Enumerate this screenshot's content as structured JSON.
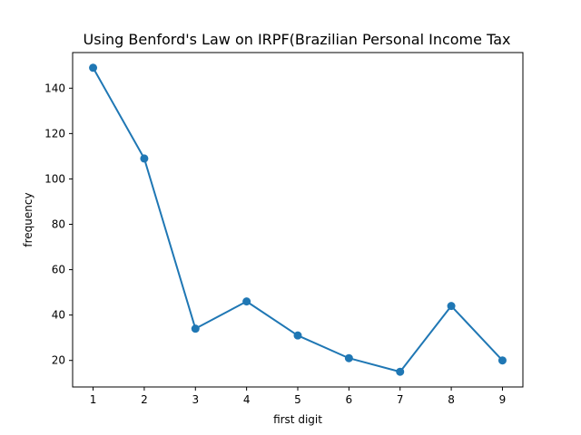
{
  "chart_data": {
    "type": "line",
    "title": "Using Benford's Law on IRPF(Brazilian Personal Income Tax",
    "xlabel": "first digit",
    "ylabel": "frequency",
    "x": [
      1,
      2,
      3,
      4,
      5,
      6,
      7,
      8,
      9
    ],
    "series": [
      {
        "values": [
          149,
          109,
          34,
          46,
          31,
          21,
          15,
          44,
          20
        ],
        "color": "#1f77b4",
        "marker": "circle"
      }
    ],
    "xlim": [
      0.6,
      9.4
    ],
    "ylim": [
      8.3,
      155.7
    ],
    "xticks": [
      "1",
      "2",
      "3",
      "4",
      "5",
      "6",
      "7",
      "8",
      "9"
    ],
    "yticks": [
      "20",
      "40",
      "60",
      "80",
      "100",
      "120",
      "140"
    ],
    "grid": false,
    "legend": "none"
  }
}
